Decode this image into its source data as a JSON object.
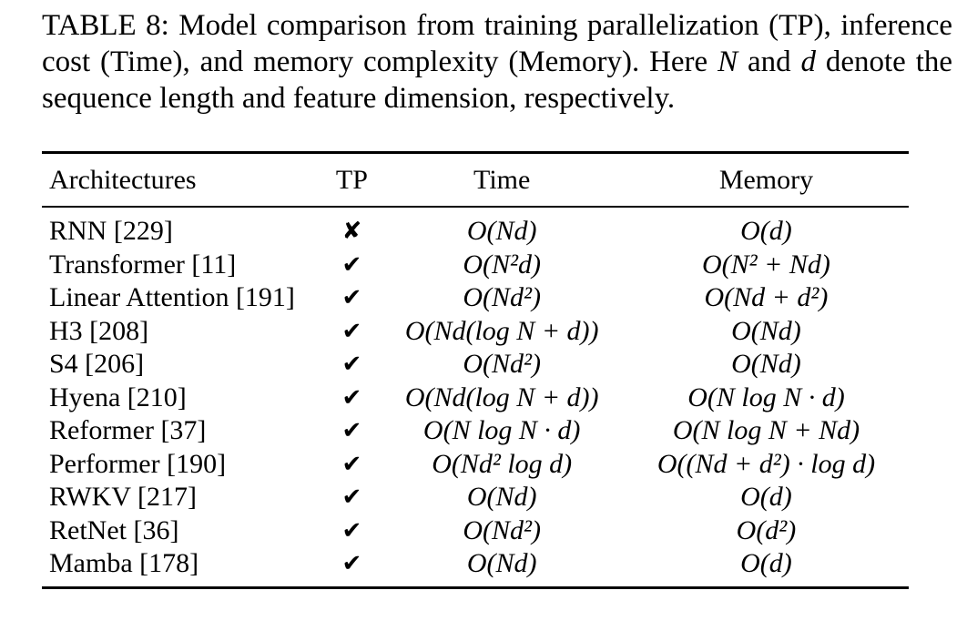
{
  "caption": {
    "part1": "TABLE 8: Model comparison from training parallelization (TP), inference cost (Time), and memory complexity (Memory). Here ",
    "var_n": "N",
    "part2": " and ",
    "var_d": "d",
    "part3": " denote the sequence length and feature dimension, respectively."
  },
  "table": {
    "headers": {
      "architectures": "Architectures",
      "tp": "TP",
      "time": "Time",
      "memory": "Memory"
    },
    "rows": [
      {
        "arch": "RNN [229]",
        "tp": "✘",
        "time": "O(Nd)",
        "memory": "O(d)"
      },
      {
        "arch": "Transformer [11]",
        "tp": "✔",
        "time": "O(N²d)",
        "memory": "O(N² + Nd)"
      },
      {
        "arch": "Linear Attention [191]",
        "tp": "✔",
        "time": "O(Nd²)",
        "memory": "O(Nd + d²)"
      },
      {
        "arch": "H3 [208]",
        "tp": "✔",
        "time": "O(Nd(log N + d))",
        "memory": "O(Nd)"
      },
      {
        "arch": "S4 [206]",
        "tp": "✔",
        "time": "O(Nd²)",
        "memory": "O(Nd)"
      },
      {
        "arch": "Hyena [210]",
        "tp": "✔",
        "time": "O(Nd(log N + d))",
        "memory": "O(N log N · d)"
      },
      {
        "arch": "Reformer [37]",
        "tp": "✔",
        "time": "O(N log N · d)",
        "memory": "O(N log N + Nd)"
      },
      {
        "arch": "Performer [190]",
        "tp": "✔",
        "time": "O(Nd² log d)",
        "memory": "O((Nd + d²) · log d)"
      },
      {
        "arch": "RWKV [217]",
        "tp": "✔",
        "time": "O(Nd)",
        "memory": "O(d)"
      },
      {
        "arch": "RetNet [36]",
        "tp": "✔",
        "time": "O(Nd²)",
        "memory": "O(d²)"
      },
      {
        "arch": "Mamba [178]",
        "tp": "✔",
        "time": "O(Nd)",
        "memory": "O(d)"
      }
    ]
  }
}
